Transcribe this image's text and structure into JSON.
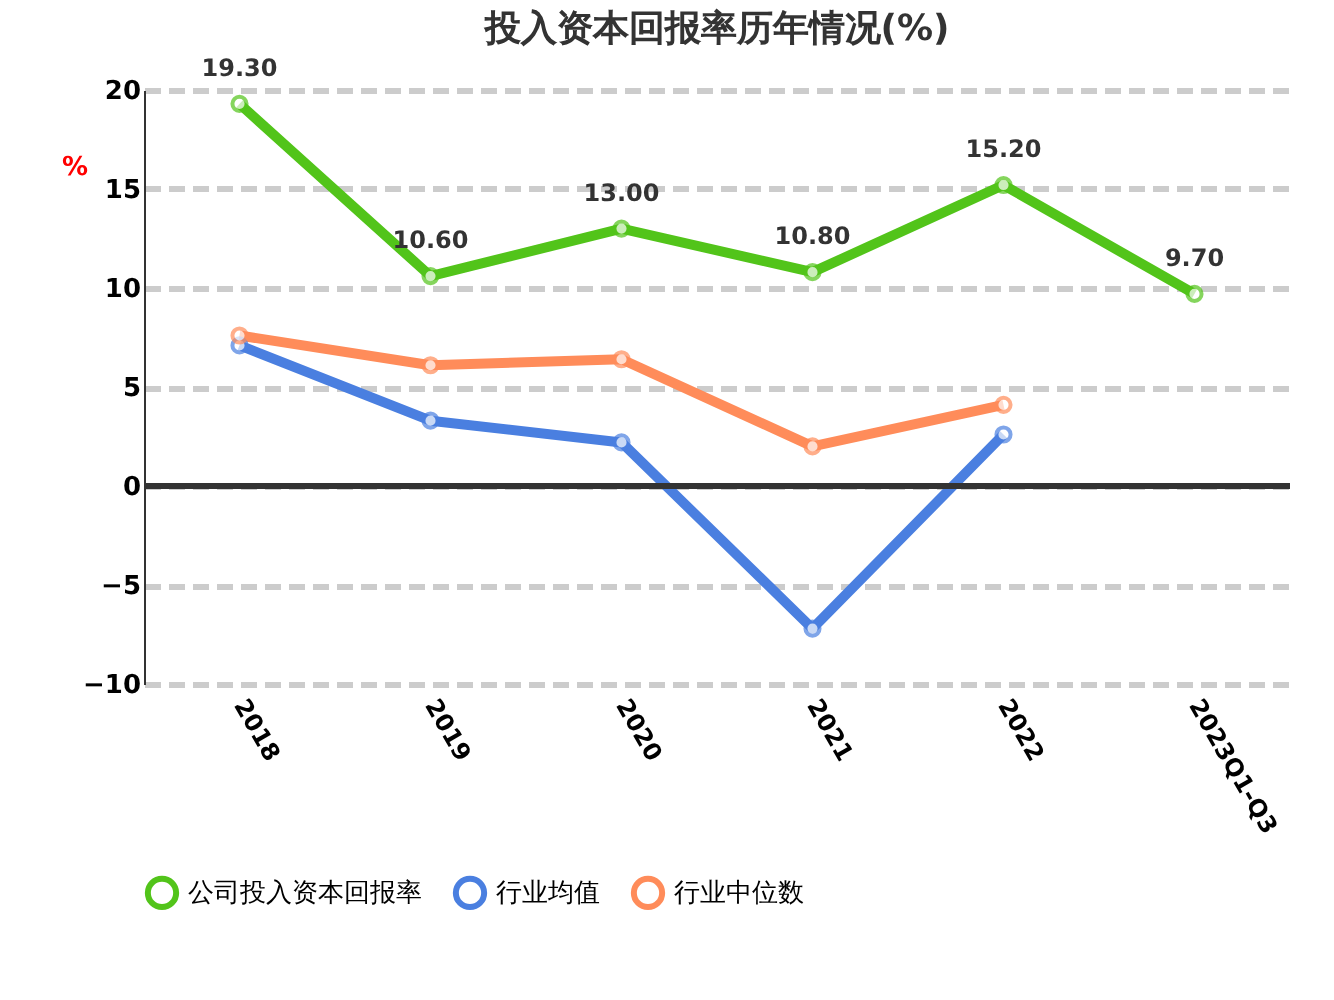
{
  "chart_data": {
    "type": "line",
    "title": "投入资本回报率历年情况(%)",
    "ylabel": "%",
    "categories": [
      "2018",
      "2019",
      "2020",
      "2021",
      "2022",
      "2023Q1-Q3"
    ],
    "series": [
      {
        "name": "公司投入资本回报率",
        "color": "#52c41a",
        "values": [
          19.3,
          10.6,
          13.0,
          10.8,
          15.2,
          9.7
        ],
        "value_labels": [
          "19.30",
          "10.60",
          "13.00",
          "10.80",
          "15.20",
          "9.70"
        ]
      },
      {
        "name": "行业均值",
        "color": "#4a7fe0",
        "values": [
          7.1,
          3.3,
          2.2,
          -7.2,
          2.6,
          null
        ]
      },
      {
        "name": "行业中位数",
        "color": "#ff8c5a",
        "values": [
          7.6,
          6.1,
          6.4,
          2.0,
          4.1,
          null
        ]
      }
    ],
    "ylim": [
      -10,
      20
    ],
    "yticks": [
      -10,
      -5,
      0,
      5,
      10,
      15,
      20
    ],
    "grid": "y",
    "legend": "bottom",
    "marker": "circle",
    "line_style": "solid"
  }
}
